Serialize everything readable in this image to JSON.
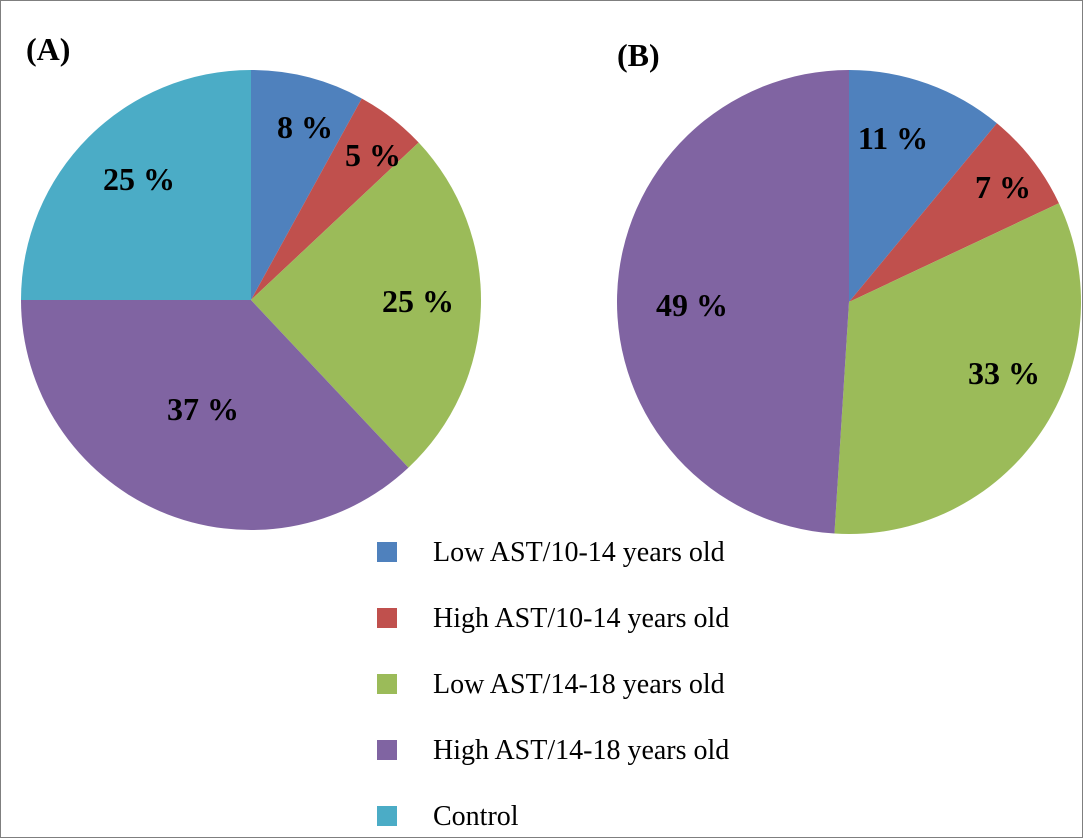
{
  "chart_data": [
    {
      "type": "pie",
      "panel_label": "(A)",
      "title": "",
      "slices": [
        {
          "label": "Low AST/10-14 years old",
          "value": 8,
          "display": "8 %",
          "color": "#4f81bd"
        },
        {
          "label": "High AST/10-14 years old",
          "value": 5,
          "display": "5 %",
          "color": "#c0504d"
        },
        {
          "label": "Low AST/14-18 years old",
          "value": 25,
          "display": "25 %",
          "color": "#9bbb59"
        },
        {
          "label": "High AST/14-18 years old",
          "value": 37,
          "display": "37 %",
          "color": "#8064a2"
        },
        {
          "label": "Control",
          "value": 25,
          "display": "25 %",
          "color": "#4bacc6"
        }
      ]
    },
    {
      "type": "pie",
      "panel_label": "(B)",
      "title": "",
      "slices": [
        {
          "label": "Low AST/10-14 years old",
          "value": 11,
          "display": "11 %",
          "color": "#4f81bd"
        },
        {
          "label": "High AST/10-14 years old",
          "value": 7,
          "display": "7 %",
          "color": "#c0504d"
        },
        {
          "label": "Low AST/14-18 years old",
          "value": 33,
          "display": "33 %",
          "color": "#9bbb59"
        },
        {
          "label": "High AST/14-18 years old",
          "value": 49,
          "display": "49 %",
          "color": "#8064a2"
        }
      ]
    }
  ],
  "legend": {
    "placement": "bottom-center",
    "entries": [
      {
        "label": "Low AST/10-14 years old",
        "color": "#4f81bd"
      },
      {
        "label": "High AST/10-14 years old",
        "color": "#c0504d"
      },
      {
        "label": "Low AST/14-18 years old",
        "color": "#9bbb59"
      },
      {
        "label": "High AST/14-18 years old",
        "color": "#8064a2"
      },
      {
        "label": "Control",
        "color": "#4bacc6"
      }
    ]
  }
}
